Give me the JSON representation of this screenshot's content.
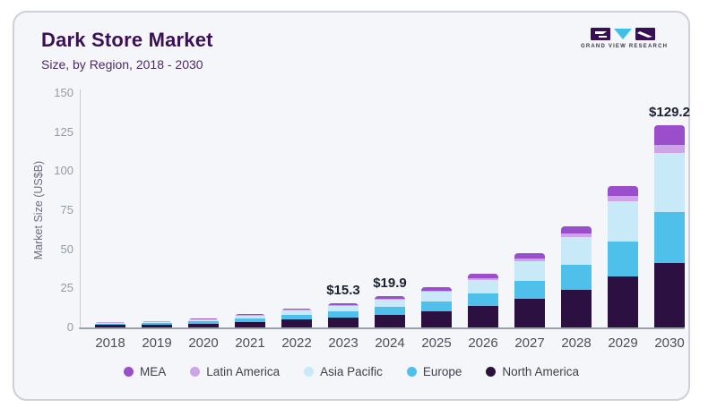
{
  "header": {
    "title": "Dark Store Market",
    "subtitle": "Size, by Region, 2018 - 2030"
  },
  "logo": {
    "brand": "GRAND VIEW RESEARCH",
    "colors": {
      "block": "#371053",
      "triangle": "#3fc0e8"
    }
  },
  "chart_data": {
    "type": "bar",
    "stacked": true,
    "title": "Dark Store Market",
    "subtitle": "Size, by Region, 2018 - 2030",
    "categories": [
      "2018",
      "2019",
      "2020",
      "2021",
      "2022",
      "2023",
      "2024",
      "2025",
      "2026",
      "2027",
      "2028",
      "2029",
      "2030"
    ],
    "series": [
      {
        "name": "North America",
        "color": "#2c1042",
        "values": [
          1.5,
          1.8,
          2.4,
          3.7,
          5.2,
          6.4,
          8.2,
          10.3,
          13.5,
          18.3,
          24.3,
          32.5,
          41.3
        ]
      },
      {
        "name": "Europe",
        "color": "#4fc0ea",
        "values": [
          0.9,
          1.0,
          1.4,
          2.1,
          3.0,
          3.7,
          4.8,
          6.2,
          8.3,
          11.6,
          16.0,
          22.6,
          32.8
        ]
      },
      {
        "name": "Asia Pacific",
        "color": "#c7e9f8",
        "values": [
          0.7,
          0.9,
          1.2,
          1.9,
          2.8,
          3.5,
          4.7,
          6.2,
          8.6,
          12.5,
          17.6,
          25.5,
          37.6
        ]
      },
      {
        "name": "Latin America",
        "color": "#cda4e7",
        "values": [
          0.1,
          0.2,
          0.2,
          0.3,
          0.4,
          0.5,
          0.7,
          0.9,
          1.2,
          1.7,
          2.3,
          3.3,
          5.1
        ]
      },
      {
        "name": "MEA",
        "color": "#9b4ecb",
        "values": [
          0.2,
          0.2,
          0.4,
          0.6,
          0.9,
          1.2,
          1.5,
          2.0,
          2.6,
          3.2,
          4.6,
          6.5,
          12.4
        ]
      }
    ],
    "value_labels": [
      {
        "category": "2023",
        "text": "$15.3"
      },
      {
        "category": "2024",
        "text": "$19.9"
      },
      {
        "category": "2030",
        "text": "$129.2"
      }
    ],
    "xlabel": "",
    "ylabel": "Market Size (US$B)",
    "ylim": [
      0,
      150
    ],
    "yticks": [
      0,
      25,
      50,
      75,
      100,
      125,
      150
    ],
    "grid": false,
    "legend": [
      "MEA",
      "Latin America",
      "Asia Pacific",
      "Europe",
      "North America"
    ],
    "legend_position": "bottom"
  }
}
